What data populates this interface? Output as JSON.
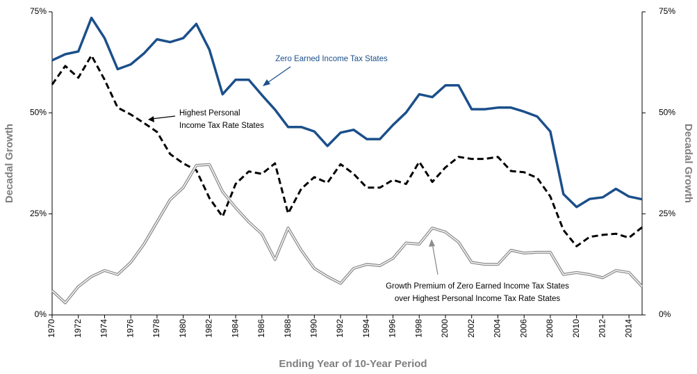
{
  "chart_data": {
    "type": "line",
    "xlabel": "Ending Year of 10-Year Period",
    "ylabel": "Decadal Growth",
    "y2label": "Decadal Growth",
    "x": [
      1970,
      1971,
      1972,
      1973,
      1974,
      1975,
      1976,
      1977,
      1978,
      1979,
      1980,
      1981,
      1982,
      1983,
      1984,
      1985,
      1986,
      1987,
      1988,
      1989,
      1990,
      1991,
      1992,
      1993,
      1994,
      1995,
      1996,
      1997,
      1998,
      1999,
      2000,
      2001,
      2002,
      2003,
      2004,
      2005,
      2006,
      2007,
      2008,
      2009,
      2010,
      2011,
      2012,
      2013,
      2014,
      2015
    ],
    "xlim": [
      1970,
      2015
    ],
    "xticks": [
      1970,
      1972,
      1974,
      1976,
      1978,
      1980,
      1982,
      1984,
      1986,
      1988,
      1990,
      1992,
      1994,
      1996,
      1998,
      2000,
      2002,
      2004,
      2006,
      2008,
      2010,
      2012,
      2014
    ],
    "ylim": [
      0,
      75
    ],
    "yticks": [
      {
        "value": 0,
        "label": "0%"
      },
      {
        "value": 25,
        "label": "25%"
      },
      {
        "value": 50,
        "label": "50%"
      },
      {
        "value": 75,
        "label": "75%"
      }
    ],
    "y2lim": [
      0,
      75
    ],
    "y2ticks": [
      {
        "value": 0,
        "label": "0%"
      },
      {
        "value": 25,
        "label": "25%"
      },
      {
        "value": 50,
        "label": "50%"
      },
      {
        "value": 75,
        "label": "75%"
      }
    ],
    "series": [
      {
        "color": "#1b4f8a",
        "style": "solid",
        "values": [
          63.0,
          64.5,
          65.2,
          73.5,
          68.5,
          60.8,
          62.0,
          64.7,
          68.2,
          67.5,
          68.5,
          72.0,
          65.6,
          54.6,
          58.2,
          58.2,
          54.4,
          50.8,
          46.5,
          46.5,
          45.4,
          41.8,
          45.1,
          45.8,
          43.5,
          43.5,
          47.0,
          50.1,
          54.6,
          53.9,
          56.8,
          56.8,
          50.9,
          50.9,
          51.3,
          51.3,
          50.3,
          49.1,
          45.4,
          29.9,
          26.7,
          28.7,
          29.1,
          31.2,
          29.3,
          28.6
        ]
      },
      {
        "color": "#000000",
        "style": "dashed",
        "values": [
          57.0,
          61.6,
          58.7,
          64.2,
          58.2,
          51.3,
          49.6,
          47.5,
          45.3,
          39.8,
          37.5,
          35.8,
          28.9,
          24.3,
          32.4,
          35.5,
          34.9,
          37.5,
          25.1,
          31.2,
          34.1,
          32.7,
          37.3,
          34.9,
          31.5,
          31.5,
          33.4,
          32.4,
          37.9,
          32.9,
          36.5,
          39.1,
          38.6,
          38.6,
          39.1,
          35.6,
          35.3,
          33.9,
          29.3,
          21.0,
          17.0,
          19.3,
          19.8,
          20.1,
          19.1,
          21.7
        ]
      },
      {
        "color": "#8c8c8c",
        "style": "double",
        "values": [
          6.0,
          3.0,
          7.0,
          9.5,
          11.0,
          10.0,
          13.0,
          17.5,
          23.0,
          28.5,
          31.5,
          37.0,
          37.2,
          30.5,
          26.5,
          23.0,
          20.0,
          13.7,
          21.5,
          16.0,
          11.5,
          9.5,
          7.8,
          11.5,
          12.5,
          12.2,
          14.0,
          17.8,
          17.5,
          21.5,
          20.5,
          18.0,
          13.0,
          12.5,
          12.5,
          16.0,
          15.3,
          15.5,
          15.5,
          10.0,
          10.5,
          10.0,
          9.2,
          11.0,
          10.5,
          7.0
        ]
      }
    ],
    "annotations": [
      [
        "Zero Earned Income Tax States"
      ],
      [
        "Highest Personal",
        "Income Tax Rate States"
      ],
      [
        "Growth Premium of Zero Earned Income Tax States",
        "over Highest Personal Income Tax Rate States"
      ]
    ]
  }
}
